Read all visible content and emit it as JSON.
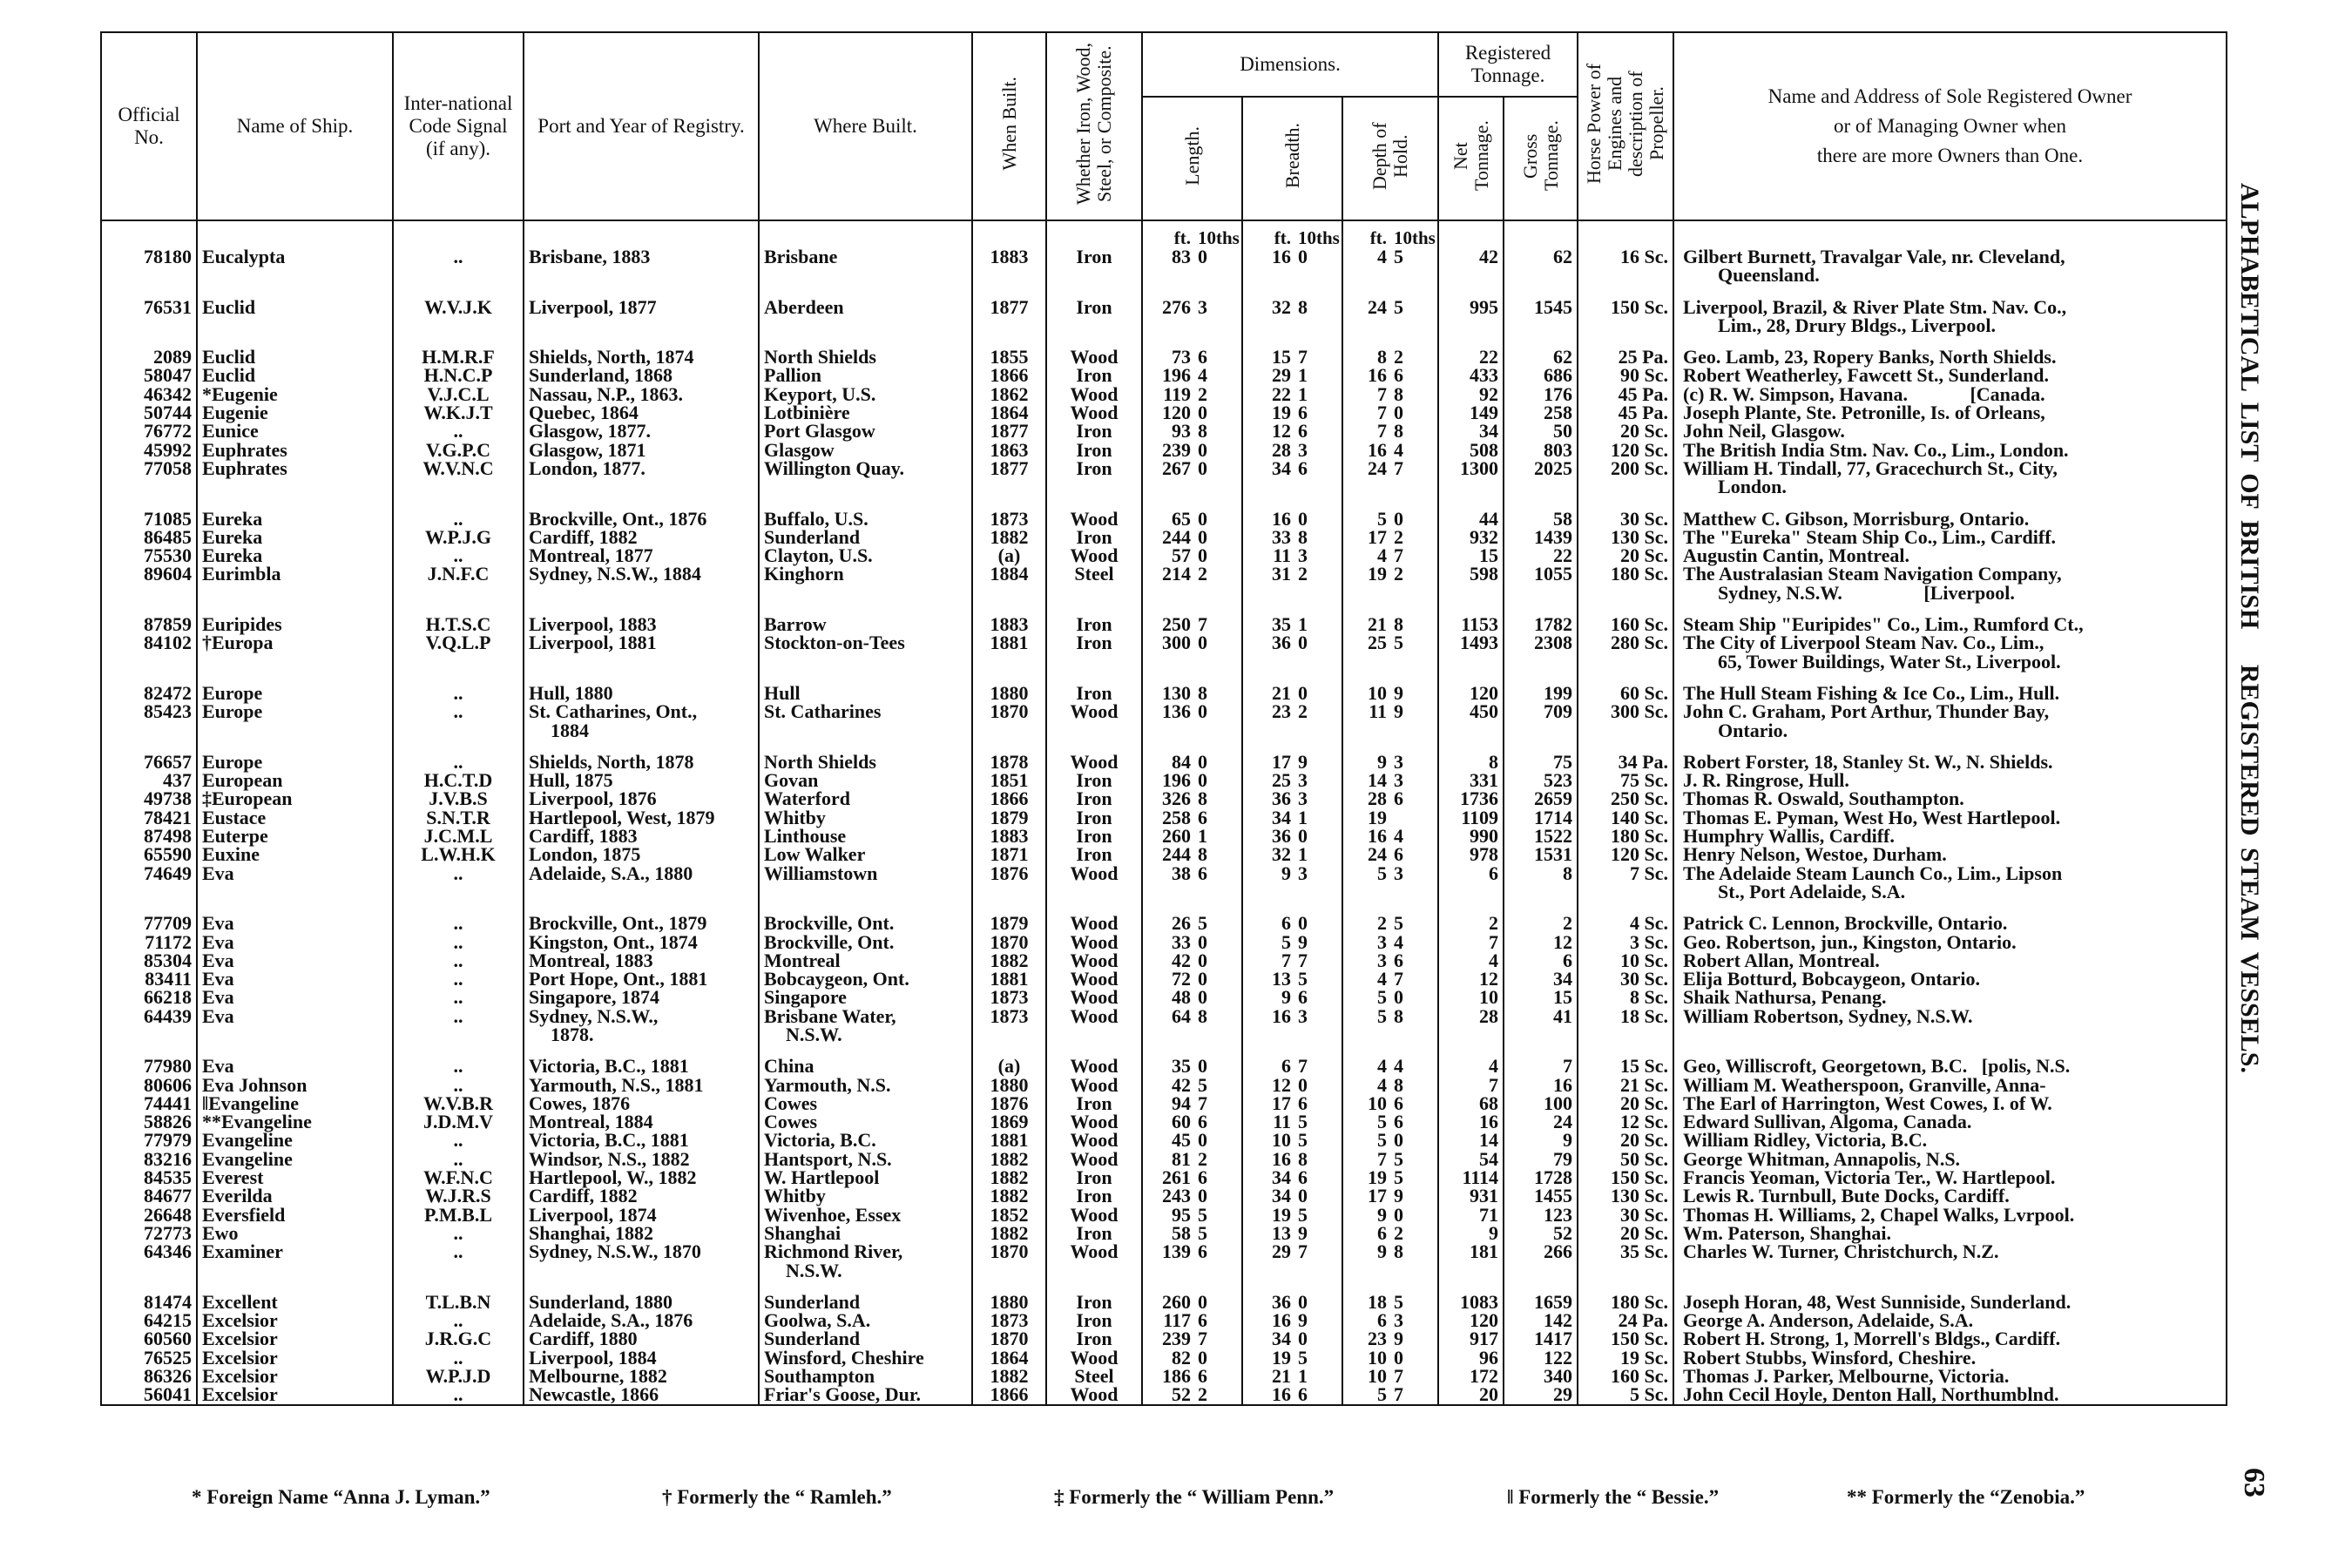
{
  "side_title": "ALPHABETICAL LIST OF BRITISH   REGISTERED STEAM VESSELS.",
  "page_number": "63",
  "headers": {
    "official_no": "Official No.",
    "name": "Name of Ship.",
    "signal": "Inter-national Code Signal (if any).",
    "port": "Port and Year of Registry.",
    "where_built": "Where Built.",
    "when_built": "When Built.",
    "material": "Whether Iron, Wood, Steel, or Composite.",
    "dimensions": "Dimensions.",
    "length": "Length.",
    "breadth": "Breadth.",
    "depth": "Depth of Hold.",
    "tonnage": "Registered Tonnage.",
    "net": "Net Tonnage.",
    "gross": "Gross Tonnage.",
    "horse_power": "Horse Power of Engines and description of Propeller.",
    "owner_line1": "Name and Address of Sole Registered Owner",
    "owner_line2": "or of Managing Owner when",
    "owner_line3": "there are more Owners than One.",
    "unit_ft": "ft.",
    "unit_10ths": "10ths"
  },
  "groups": [
    [
      [
        "78180",
        "Eucalypta",
        "..",
        "Brisbane, 1883",
        "Brisbane",
        "1883",
        "Iron",
        "83",
        "0",
        "16",
        "0",
        "4",
        "5",
        "42",
        "62",
        "16 Sc.",
        "Gilbert Burnett, Travalgar Vale, nr. Cleveland,"
      ],
      [
        "",
        "",
        "",
        "",
        "",
        "",
        "",
        "",
        "",
        "",
        "",
        "",
        "",
        "",
        "",
        "",
        "Queensland."
      ]
    ],
    [
      [
        "76531",
        "Euclid",
        "W.V.J.K",
        "Liverpool, 1877",
        "Aberdeen",
        "1877",
        "Iron",
        "276",
        "3",
        "32",
        "8",
        "24",
        "5",
        "995",
        "1545",
        "150 Sc.",
        "Liverpool, Brazil, & River Plate Stm. Nav. Co.,"
      ],
      [
        "",
        "",
        "",
        "",
        "",
        "",
        "",
        "",
        "",
        "",
        "",
        "",
        "",
        "",
        "",
        "",
        "Lim., 28, Drury Bldgs., Liverpool."
      ]
    ],
    [
      [
        "2089",
        "Euclid",
        "H.M.R.F",
        "Shields, North, 1874",
        "North Shields",
        "1855",
        "Wood",
        "73",
        "6",
        "15",
        "7",
        "8",
        "2",
        "22",
        "62",
        "25 Pa.",
        "Geo. Lamb, 23, Ropery Banks, North Shields."
      ],
      [
        "58047",
        "Euclid",
        "H.N.C.P",
        "Sunderland, 1868",
        "Pallion",
        "1866",
        "Iron",
        "196",
        "4",
        "29",
        "1",
        "16",
        "6",
        "433",
        "686",
        "90 Sc.",
        "Robert Weatherley, Fawcett St., Sunderland."
      ],
      [
        "46342",
        "*Eugenie",
        "V.J.C.L",
        "Nassau, N.P., 1863.",
        "Keyport, U.S.",
        "1862",
        "Wood",
        "119",
        "2",
        "22",
        "1",
        "7",
        "8",
        "92",
        "176",
        "45 Pa.",
        "(c) R. W. Simpson, Havana.             [Canada."
      ],
      [
        "50744",
        "Eugenie",
        "W.K.J.T",
        "Quebec, 1864",
        "Lotbinière",
        "1864",
        "Wood",
        "120",
        "0",
        "19",
        "6",
        "7",
        "0",
        "149",
        "258",
        "45 Pa.",
        "Joseph Plante, Ste. Petronille, Is. of Orleans,"
      ],
      [
        "76772",
        "Eunice",
        "..",
        "Glasgow, 1877.",
        "Port Glasgow",
        "1877",
        "Iron",
        "93",
        "8",
        "12",
        "6",
        "7",
        "8",
        "34",
        "50",
        "20 Sc.",
        "John Neil, Glasgow."
      ],
      [
        "45992",
        "Euphrates",
        "V.G.P.C",
        "Glasgow, 1871",
        "Glasgow",
        "1863",
        "Iron",
        "239",
        "0",
        "28",
        "3",
        "16",
        "4",
        "508",
        "803",
        "120 Sc.",
        "The British India Stm. Nav. Co., Lim., London."
      ],
      [
        "77058",
        "Euphrates",
        "W.V.N.C",
        "London, 1877.",
        "Willington Quay.",
        "1877",
        "Iron",
        "267",
        "0",
        "34",
        "6",
        "24",
        "7",
        "1300",
        "2025",
        "200 Sc.",
        "William H. Tindall, 77, Gracechurch St., City,"
      ],
      [
        "",
        "",
        "",
        "",
        "",
        "",
        "",
        "",
        "",
        "",
        "",
        "",
        "",
        "",
        "",
        "",
        "London."
      ]
    ],
    [
      [
        "71085",
        "Eureka",
        "..",
        "Brockville, Ont., 1876",
        "Buffalo, U.S.",
        "1873",
        "Wood",
        "65",
        "0",
        "16",
        "0",
        "5",
        "0",
        "44",
        "58",
        "30 Sc.",
        "Matthew C. Gibson, Morrisburg, Ontario."
      ],
      [
        "86485",
        "Eureka",
        "W.P.J.G",
        "Cardiff, 1882",
        "Sunderland",
        "1882",
        "Iron",
        "244",
        "0",
        "33",
        "8",
        "17",
        "2",
        "932",
        "1439",
        "130 Sc.",
        "The \"Eureka\" Steam Ship Co., Lim., Cardiff."
      ],
      [
        "75530",
        "Eureka",
        "..",
        "Montreal, 1877",
        "Clayton, U.S.",
        "(a)",
        "Wood",
        "57",
        "0",
        "11",
        "3",
        "4",
        "7",
        "15",
        "22",
        "20 Sc.",
        "Augustin Cantin, Montreal."
      ],
      [
        "89604",
        "Eurimbla",
        "J.N.F.C",
        "Sydney, N.S.W., 1884",
        "Kinghorn",
        "1884",
        "Steel",
        "214",
        "2",
        "31",
        "2",
        "19",
        "2",
        "598",
        "1055",
        "180 Sc.",
        "The Australasian Steam Navigation Company,"
      ],
      [
        "",
        "",
        "",
        "",
        "",
        "",
        "",
        "",
        "",
        "",
        "",
        "",
        "",
        "",
        "",
        "",
        "Sydney, N.S.W.                 [Liverpool."
      ]
    ],
    [
      [
        "87859",
        "Euripides",
        "H.T.S.C",
        "Liverpool, 1883",
        "Barrow",
        "1883",
        "Iron",
        "250",
        "7",
        "35",
        "1",
        "21",
        "8",
        "1153",
        "1782",
        "160 Sc.",
        "Steam Ship \"Euripides\" Co., Lim., Rumford Ct.,"
      ],
      [
        "84102",
        "†Europa",
        "V.Q.L.P",
        "Liverpool, 1881",
        "Stockton-on-Tees",
        "1881",
        "Iron",
        "300",
        "0",
        "36",
        "0",
        "25",
        "5",
        "1493",
        "2308",
        "280 Sc.",
        "The City of Liverpool Steam Nav. Co., Lim.,"
      ],
      [
        "",
        "",
        "",
        "",
        "",
        "",
        "",
        "",
        "",
        "",
        "",
        "",
        "",
        "",
        "",
        "",
        "65, Tower Buildings, Water St., Liverpool."
      ]
    ],
    [
      [
        "82472",
        "Europe",
        "..",
        "Hull, 1880",
        "Hull",
        "1880",
        "Iron",
        "130",
        "8",
        "21",
        "0",
        "10",
        "9",
        "120",
        "199",
        "60 Sc.",
        "The Hull Steam Fishing & Ice Co., Lim., Hull."
      ],
      [
        "85423",
        "Europe",
        "..",
        "St. Catharines, Ont.,",
        "St. Catharines",
        "1870",
        "Wood",
        "136",
        "0",
        "23",
        "2",
        "11",
        "9",
        "450",
        "709",
        "300 Sc.",
        "John C. Graham, Port Arthur, Thunder Bay,"
      ],
      [
        "",
        "",
        "",
        "1884",
        "",
        "",
        "",
        "",
        "",
        "",
        "",
        "",
        "",
        "",
        "",
        "",
        "Ontario."
      ]
    ],
    [
      [
        "76657",
        "Europe",
        "..",
        "Shields, North, 1878",
        "North Shields",
        "1878",
        "Wood",
        "84",
        "0",
        "17",
        "9",
        "9",
        "3",
        "8",
        "75",
        "34 Pa.",
        "Robert Forster, 18, Stanley St. W., N. Shields."
      ],
      [
        "437",
        "European",
        "H.C.T.D",
        "Hull, 1875",
        "Govan",
        "1851",
        "Iron",
        "196",
        "0",
        "25",
        "3",
        "14",
        "3",
        "331",
        "523",
        "75 Sc.",
        "J. R. Ringrose, Hull."
      ],
      [
        "49738",
        "‡European",
        "J.V.B.S",
        "Liverpool, 1876",
        "Waterford",
        "1866",
        "Iron",
        "326",
        "8",
        "36",
        "3",
        "28",
        "6",
        "1736",
        "2659",
        "250 Sc.",
        "Thomas R. Oswald, Southampton."
      ],
      [
        "78421",
        "Eustace",
        "S.N.T.R",
        "Hartlepool, West, 1879",
        "Whitby",
        "1879",
        "Iron",
        "258",
        "6",
        "34",
        "1",
        "19",
        "",
        "1109",
        "1714",
        "140 Sc.",
        "Thomas E. Pyman, West Ho, West Hartlepool."
      ],
      [
        "87498",
        "Euterpe",
        "J.C.M.L",
        "Cardiff, 1883",
        "Linthouse",
        "1883",
        "Iron",
        "260",
        "1",
        "36",
        "0",
        "16",
        "4",
        "990",
        "1522",
        "180 Sc.",
        "Humphry Wallis, Cardiff."
      ],
      [
        "65590",
        "Euxine",
        "L.W.H.K",
        "London, 1875",
        "Low Walker",
        "1871",
        "Iron",
        "244",
        "8",
        "32",
        "1",
        "24",
        "6",
        "978",
        "1531",
        "120 Sc.",
        "Henry Nelson, Westoe, Durham."
      ],
      [
        "74649",
        "Eva",
        "..",
        "Adelaide, S.A., 1880",
        "Williamstown",
        "1876",
        "Wood",
        "38",
        "6",
        "9",
        "3",
        "5",
        "3",
        "6",
        "8",
        "7 Sc.",
        "The Adelaide Steam Launch Co., Lim., Lipson"
      ],
      [
        "",
        "",
        "",
        "",
        "",
        "",
        "",
        "",
        "",
        "",
        "",
        "",
        "",
        "",
        "",
        "",
        "St., Port Adelaide, S.A."
      ]
    ],
    [
      [
        "77709",
        "Eva",
        "..",
        "Brockville, Ont., 1879",
        "Brockville, Ont.",
        "1879",
        "Wood",
        "26",
        "5",
        "6",
        "0",
        "2",
        "5",
        "2",
        "2",
        "4 Sc.",
        "Patrick C. Lennon, Brockville, Ontario."
      ],
      [
        "71172",
        "Eva",
        "..",
        "Kingston, Ont., 1874",
        "Brockville, Ont.",
        "1870",
        "Wood",
        "33",
        "0",
        "5",
        "9",
        "3",
        "4",
        "7",
        "12",
        "3 Sc.",
        "Geo. Robertson, jun., Kingston, Ontario."
      ],
      [
        "85304",
        "Eva",
        "..",
        "Montreal, 1883",
        "Montreal",
        "1882",
        "Wood",
        "42",
        "0",
        "7",
        "7",
        "3",
        "6",
        "4",
        "6",
        "10 Sc.",
        "Robert Allan, Montreal."
      ],
      [
        "83411",
        "Eva",
        "..",
        "Port Hope, Ont., 1881",
        "Bobcaygeon, Ont.",
        "1881",
        "Wood",
        "72",
        "0",
        "13",
        "5",
        "4",
        "7",
        "12",
        "34",
        "30 Sc.",
        "Elija Botturd, Bobcaygeon, Ontario."
      ],
      [
        "66218",
        "Eva",
        "..",
        "Singapore, 1874",
        "Singapore",
        "1873",
        "Wood",
        "48",
        "0",
        "9",
        "6",
        "5",
        "0",
        "10",
        "15",
        "8 Sc.",
        "Shaik Nathursa, Penang."
      ],
      [
        "64439",
        "Eva",
        "..",
        "Sydney, N.S.W.,",
        "Brisbane Water,",
        "1873",
        "Wood",
        "64",
        "8",
        "16",
        "3",
        "5",
        "8",
        "28",
        "41",
        "18 Sc.",
        "William Robertson, Sydney, N.S.W."
      ],
      [
        "",
        "",
        "",
        "1878.",
        "N.S.W.",
        "",
        "",
        "",
        "",
        "",
        "",
        "",
        "",
        "",
        "",
        "",
        ""
      ]
    ],
    [
      [
        "77980",
        "Eva",
        "..",
        "Victoria, B.C., 1881",
        "China",
        "(a)",
        "Wood",
        "35",
        "0",
        "6",
        "7",
        "4",
        "4",
        "4",
        "7",
        "15 Sc.",
        "Geo, Williscroft, Georgetown, B.C.   [polis, N.S."
      ],
      [
        "80606",
        "Eva Johnson",
        "..",
        "Yarmouth, N.S., 1881",
        "Yarmouth, N.S.",
        "1880",
        "Wood",
        "42",
        "5",
        "12",
        "0",
        "4",
        "8",
        "7",
        "16",
        "21 Sc.",
        "William M. Weatherspoon, Granville, Anna-"
      ],
      [
        "74441",
        "‖Evangeline",
        "W.V.B.R",
        "Cowes, 1876",
        "Cowes",
        "1876",
        "Iron",
        "94",
        "7",
        "17",
        "6",
        "10",
        "6",
        "68",
        "100",
        "20 Sc.",
        "The Earl of Harrington, West Cowes, I. of W."
      ],
      [
        "58826",
        "**Evangeline",
        "J.D.M.V",
        "Montreal, 1884",
        "Cowes",
        "1869",
        "Wood",
        "60",
        "6",
        "11",
        "5",
        "5",
        "6",
        "16",
        "24",
        "12 Sc.",
        "Edward Sullivan, Algoma, Canada."
      ],
      [
        "77979",
        "Evangeline",
        "..",
        "Victoria, B.C., 1881",
        "Victoria, B.C.",
        "1881",
        "Wood",
        "45",
        "0",
        "10",
        "5",
        "5",
        "0",
        "14",
        "9",
        "20 Sc.",
        "William Ridley, Victoria, B.C."
      ],
      [
        "83216",
        "Evangeline",
        "..",
        "Windsor, N.S., 1882",
        "Hantsport, N.S.",
        "1882",
        "Wood",
        "81",
        "2",
        "16",
        "8",
        "7",
        "5",
        "54",
        "79",
        "50 Sc.",
        "George Whitman, Annapolis, N.S."
      ],
      [
        "84535",
        "Everest",
        "W.F.N.C",
        "Hartlepool, W., 1882",
        "W. Hartlepool",
        "1882",
        "Iron",
        "261",
        "6",
        "34",
        "6",
        "19",
        "5",
        "1114",
        "1728",
        "150 Sc.",
        "Francis Yeoman, Victoria Ter., W. Hartlepool."
      ],
      [
        "84677",
        "Everilda",
        "W.J.R.S",
        "Cardiff, 1882",
        "Whitby",
        "1882",
        "Iron",
        "243",
        "0",
        "34",
        "0",
        "17",
        "9",
        "931",
        "1455",
        "130 Sc.",
        "Lewis R. Turnbull, Bute Docks, Cardiff."
      ],
      [
        "26648",
        "Eversfield",
        "P.M.B.L",
        "Liverpool, 1874",
        "Wivenhoe, Essex",
        "1852",
        "Wood",
        "95",
        "5",
        "19",
        "5",
        "9",
        "0",
        "71",
        "123",
        "30 Sc.",
        "Thomas H. Williams, 2, Chapel Walks, Lvrpool."
      ],
      [
        "72773",
        "Ewo",
        "..",
        "Shanghai, 1882",
        "Shanghai",
        "1882",
        "Iron",
        "58",
        "5",
        "13",
        "9",
        "6",
        "2",
        "9",
        "52",
        "20 Sc.",
        "Wm. Paterson, Shanghai."
      ],
      [
        "64346",
        "Examiner",
        "..",
        "Sydney, N.S.W., 1870",
        "Richmond River,",
        "1870",
        "Wood",
        "139",
        "6",
        "29",
        "7",
        "9",
        "8",
        "181",
        "266",
        "35 Sc.",
        "Charles W. Turner, Christchurch, N.Z."
      ],
      [
        "",
        "",
        "",
        "",
        "N.S.W.",
        "",
        "",
        "",
        "",
        "",
        "",
        "",
        "",
        "",
        "",
        "",
        ""
      ]
    ],
    [
      [
        "81474",
        "Excellent",
        "T.L.B.N",
        "Sunderland, 1880",
        "Sunderland",
        "1880",
        "Iron",
        "260",
        "0",
        "36",
        "0",
        "18",
        "5",
        "1083",
        "1659",
        "180 Sc.",
        "Joseph Horan, 48, West Sunniside, Sunderland."
      ],
      [
        "64215",
        "Excelsior",
        "..",
        "Adelaide, S.A., 1876",
        "Goolwa, S.A.",
        "1873",
        "Iron",
        "117",
        "6",
        "16",
        "9",
        "6",
        "3",
        "120",
        "142",
        "24 Pa.",
        "George A. Anderson, Adelaide, S.A."
      ],
      [
        "60560",
        "Excelsior",
        "J.R.G.C",
        "Cardiff, 1880",
        "Sunderland",
        "1870",
        "Iron",
        "239",
        "7",
        "34",
        "0",
        "23",
        "9",
        "917",
        "1417",
        "150 Sc.",
        "Robert H. Strong, 1, Morrell's Bldgs., Cardiff."
      ],
      [
        "76525",
        "Excelsior",
        "..",
        "Liverpool, 1884",
        "Winsford, Cheshire",
        "1864",
        "Wood",
        "82",
        "0",
        "19",
        "5",
        "10",
        "0",
        "96",
        "122",
        "19 Sc.",
        "Robert Stubbs, Winsford, Cheshire."
      ],
      [
        "86326",
        "Excelsior",
        "W.P.J.D",
        "Melbourne, 1882",
        "Southampton",
        "1882",
        "Steel",
        "186",
        "6",
        "21",
        "1",
        "10",
        "7",
        "172",
        "340",
        "160 Sc.",
        "Thomas J. Parker, Melbourne, Victoria."
      ],
      [
        "56041",
        "Excelsior",
        "..",
        "Newcastle, 1866",
        "Friar's Goose, Dur.",
        "1866",
        "Wood",
        "52",
        "2",
        "16",
        "6",
        "5",
        "7",
        "20",
        "29",
        "5 Sc.",
        "John Cecil Hoyle, Denton Hall, Northumblnd."
      ]
    ]
  ],
  "footnotes": [
    "* Foreign Name “Anna J. Lyman.”",
    "† Formerly the “ Ramleh.”",
    "‡ Formerly the “ William Penn.”",
    "‖ Formerly the “ Bessie.”",
    "** Formerly the “Zenobia.”"
  ]
}
